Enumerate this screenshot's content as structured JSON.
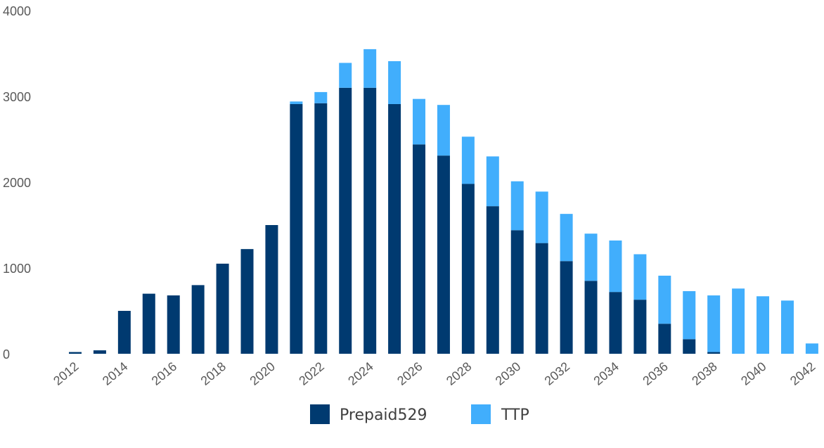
{
  "chart_data": {
    "type": "bar",
    "stacked": true,
    "x": [
      2012,
      2013,
      2014,
      2015,
      2016,
      2017,
      2018,
      2019,
      2020,
      2021,
      2022,
      2023,
      2024,
      2025,
      2026,
      2027,
      2028,
      2029,
      2030,
      2031,
      2032,
      2033,
      2034,
      2035,
      2036,
      2037,
      2038,
      2039,
      2040,
      2041,
      2042
    ],
    "x_tick_labels": [
      "2012",
      "2014",
      "2016",
      "2018",
      "2020",
      "2022",
      "2024",
      "2026",
      "2028",
      "2030",
      "2032",
      "2034",
      "2036",
      "2038",
      "2040",
      "2042"
    ],
    "series": [
      {
        "name": "Prepaid529",
        "color": "#003a70",
        "values": [
          20,
          40,
          500,
          700,
          680,
          800,
          1050,
          1220,
          1500,
          2910,
          2920,
          3100,
          3100,
          2910,
          2440,
          2310,
          1980,
          1720,
          1440,
          1290,
          1080,
          850,
          720,
          630,
          350,
          170,
          20,
          0,
          0,
          0,
          0
        ]
      },
      {
        "name": "TTP",
        "color": "#41aefc",
        "values": [
          0,
          0,
          0,
          0,
          0,
          0,
          0,
          0,
          0,
          30,
          130,
          290,
          450,
          500,
          530,
          590,
          550,
          580,
          570,
          600,
          550,
          550,
          600,
          530,
          560,
          560,
          660,
          760,
          670,
          620,
          120
        ]
      }
    ],
    "ylim": [
      0,
      4000
    ],
    "y_ticks": [
      0,
      1000,
      2000,
      3000,
      4000
    ],
    "title": "",
    "xlabel": "",
    "ylabel": "",
    "grid": false,
    "legend_position": "bottom-center"
  }
}
